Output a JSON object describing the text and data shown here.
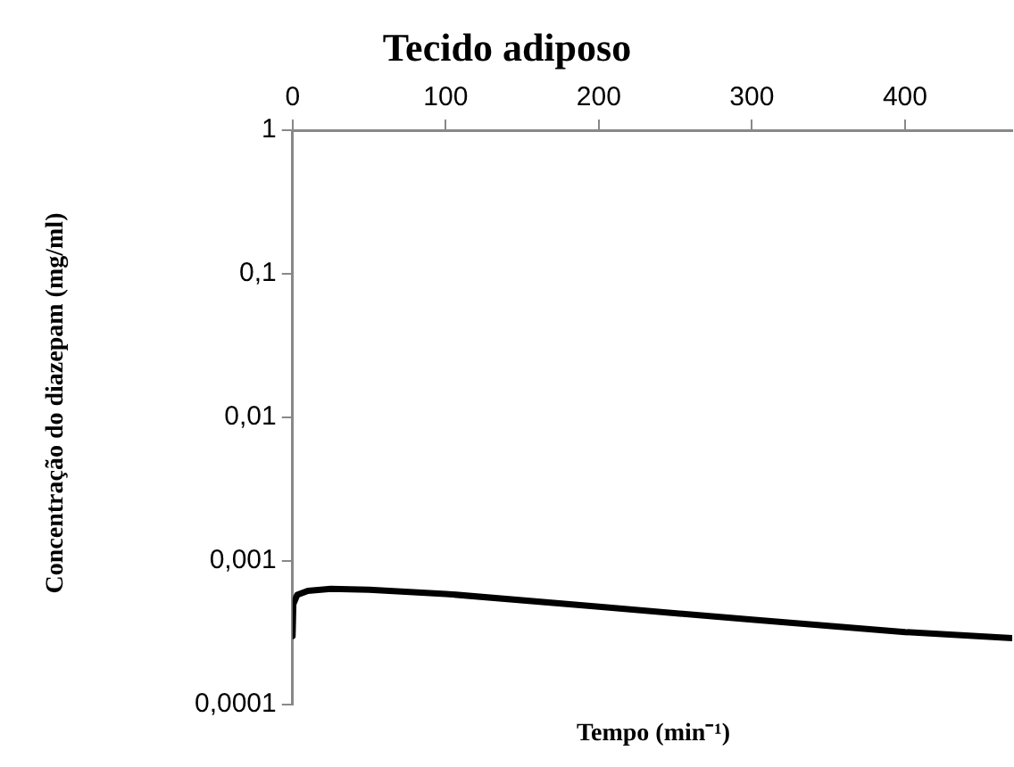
{
  "chart_data": {
    "type": "line",
    "title": "Tecido adiposo",
    "xlabel": "Tempo (min⁻¹)",
    "ylabel": "Concentração do diazepam (mg/ml)",
    "x": [
      0,
      0.5,
      3,
      10,
      25,
      50,
      100,
      200,
      300,
      400,
      470
    ],
    "series": [
      {
        "color": "#000000",
        "values": [
          0.0003,
          0.0005,
          0.00058,
          0.00062,
          0.00064,
          0.00063,
          0.00059,
          0.00048,
          0.00039,
          0.00032,
          0.00029
        ]
      }
    ],
    "xlim": [
      0,
      470
    ],
    "xticks": [
      0,
      100,
      200,
      300,
      400
    ],
    "ylim": [
      0.0001,
      1
    ],
    "yticks": [
      {
        "value": 0.0001,
        "label": "0,0001"
      },
      {
        "value": 0.001,
        "label": "0,001"
      },
      {
        "value": 0.01,
        "label": "0,01"
      },
      {
        "value": 0.1,
        "label": "0,1"
      },
      {
        "value": 1,
        "label": "1"
      }
    ],
    "log": "y",
    "grid": false,
    "legend": false,
    "marker": "none",
    "line_style": "solid"
  }
}
